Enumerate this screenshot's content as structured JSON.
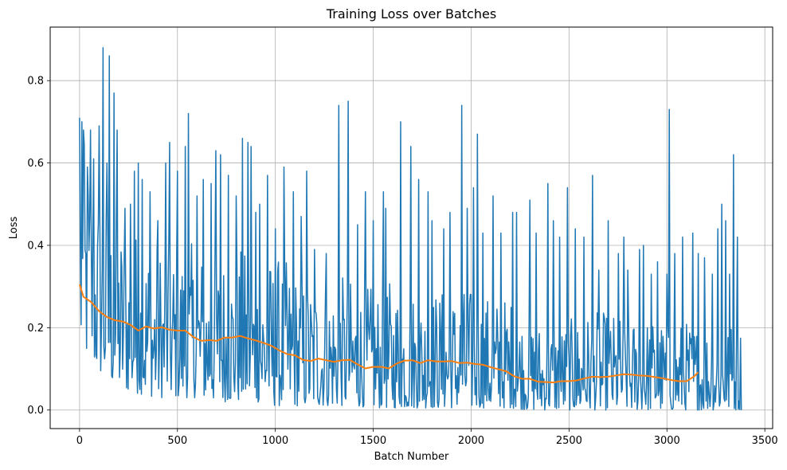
{
  "chart_data": {
    "type": "line",
    "title": "Training Loss over Batches",
    "xlabel": "Batch Number",
    "ylabel": "Loss",
    "xlim": [
      -150,
      3540
    ],
    "ylim": [
      -0.045,
      0.93
    ],
    "grid": true,
    "x_ticks": [
      0,
      500,
      1000,
      1500,
      2000,
      2500,
      3000,
      3500
    ],
    "x_tick_labels": [
      "0",
      "500",
      "1000",
      "1500",
      "2000",
      "2500",
      "3000",
      "3500"
    ],
    "y_ticks": [
      0.0,
      0.2,
      0.4,
      0.6,
      0.8
    ],
    "y_tick_labels": [
      "0.0",
      "0.2",
      "0.4",
      "0.6",
      "0.8"
    ],
    "series": [
      {
        "color": "#1f77b4",
        "x_range": [
          0,
          3380
        ],
        "envelope": {
          "x": [
            0,
            100,
            200,
            300,
            400,
            500,
            600,
            700,
            800,
            900,
            1000,
            1100,
            1200,
            1300,
            1400,
            1500,
            1600,
            1700,
            1800,
            1900,
            2000,
            2100,
            2200,
            2300,
            2400,
            2500,
            2600,
            2700,
            2800,
            2900,
            3000,
            3100,
            3200,
            3300,
            3380
          ],
          "low": [
            0.15,
            0.09,
            0.05,
            0.04,
            0.03,
            0.03,
            0.03,
            0.02,
            0.02,
            0.02,
            0.01,
            0.01,
            0.01,
            0.01,
            0.01,
            0.005,
            0.005,
            0.005,
            0.005,
            0.005,
            0.005,
            0.005,
            0.005,
            0.0,
            0.0,
            0.0,
            0.0,
            0.0,
            0.0,
            0.0,
            0.0,
            0.0,
            0.0,
            0.0,
            0.0
          ],
          "high": [
            0.68,
            0.55,
            0.48,
            0.45,
            0.42,
            0.42,
            0.4,
            0.4,
            0.4,
            0.38,
            0.38,
            0.35,
            0.33,
            0.33,
            0.32,
            0.3,
            0.32,
            0.3,
            0.3,
            0.3,
            0.3,
            0.28,
            0.28,
            0.22,
            0.22,
            0.22,
            0.24,
            0.24,
            0.23,
            0.23,
            0.22,
            0.22,
            0.22,
            0.22,
            0.22
          ]
        },
        "spikes": [
          [
            0,
            0.71
          ],
          [
            10,
            0.7
          ],
          [
            20,
            0.68
          ],
          [
            40,
            0.59
          ],
          [
            55,
            0.68
          ],
          [
            70,
            0.61
          ],
          [
            100,
            0.69
          ],
          [
            120,
            0.88
          ],
          [
            140,
            0.6
          ],
          [
            150,
            0.86
          ],
          [
            175,
            0.77
          ],
          [
            190,
            0.68
          ],
          [
            230,
            0.49
          ],
          [
            260,
            0.5
          ],
          [
            280,
            0.58
          ],
          [
            300,
            0.6
          ],
          [
            320,
            0.56
          ],
          [
            360,
            0.53
          ],
          [
            400,
            0.46
          ],
          [
            440,
            0.6
          ],
          [
            460,
            0.65
          ],
          [
            500,
            0.58
          ],
          [
            540,
            0.64
          ],
          [
            555,
            0.72
          ],
          [
            600,
            0.52
          ],
          [
            630,
            0.56
          ],
          [
            670,
            0.55
          ],
          [
            695,
            0.63
          ],
          [
            720,
            0.62
          ],
          [
            760,
            0.57
          ],
          [
            800,
            0.52
          ],
          [
            830,
            0.66
          ],
          [
            860,
            0.65
          ],
          [
            875,
            0.64
          ],
          [
            900,
            0.48
          ],
          [
            920,
            0.5
          ],
          [
            960,
            0.57
          ],
          [
            1000,
            0.44
          ],
          [
            1045,
            0.59
          ],
          [
            1090,
            0.53
          ],
          [
            1130,
            0.47
          ],
          [
            1160,
            0.58
          ],
          [
            1200,
            0.39
          ],
          [
            1260,
            0.38
          ],
          [
            1325,
            0.74
          ],
          [
            1370,
            0.75
          ],
          [
            1420,
            0.45
          ],
          [
            1460,
            0.53
          ],
          [
            1500,
            0.46
          ],
          [
            1550,
            0.53
          ],
          [
            1565,
            0.49
          ],
          [
            1640,
            0.7
          ],
          [
            1690,
            0.64
          ],
          [
            1730,
            0.56
          ],
          [
            1780,
            0.53
          ],
          [
            1800,
            0.46
          ],
          [
            1860,
            0.44
          ],
          [
            1890,
            0.48
          ],
          [
            1950,
            0.74
          ],
          [
            1980,
            0.49
          ],
          [
            2010,
            0.54
          ],
          [
            2030,
            0.67
          ],
          [
            2060,
            0.43
          ],
          [
            2110,
            0.52
          ],
          [
            2150,
            0.43
          ],
          [
            2210,
            0.48
          ],
          [
            2230,
            0.48
          ],
          [
            2300,
            0.51
          ],
          [
            2330,
            0.43
          ],
          [
            2390,
            0.55
          ],
          [
            2420,
            0.46
          ],
          [
            2450,
            0.42
          ],
          [
            2490,
            0.54
          ],
          [
            2530,
            0.44
          ],
          [
            2575,
            0.42
          ],
          [
            2620,
            0.57
          ],
          [
            2650,
            0.34
          ],
          [
            2700,
            0.46
          ],
          [
            2750,
            0.38
          ],
          [
            2780,
            0.42
          ],
          [
            2800,
            0.34
          ],
          [
            2860,
            0.39
          ],
          [
            2880,
            0.4
          ],
          [
            2920,
            0.33
          ],
          [
            2950,
            0.36
          ],
          [
            3000,
            0.33
          ],
          [
            3010,
            0.73
          ],
          [
            3040,
            0.38
          ],
          [
            3080,
            0.42
          ],
          [
            3130,
            0.43
          ],
          [
            3160,
            0.38
          ],
          [
            3190,
            0.37
          ],
          [
            3230,
            0.33
          ],
          [
            3260,
            0.44
          ],
          [
            3280,
            0.5
          ],
          [
            3300,
            0.46
          ],
          [
            3320,
            0.33
          ],
          [
            3340,
            0.62
          ],
          [
            3360,
            0.42
          ]
        ]
      },
      {
        "color": "#ff7f0e",
        "x": [
          0,
          20,
          60,
          100,
          140,
          180,
          220,
          260,
          300,
          340,
          380,
          420,
          460,
          500,
          540,
          580,
          620,
          660,
          700,
          740,
          780,
          820,
          860,
          900,
          940,
          980,
          1020,
          1060,
          1100,
          1140,
          1180,
          1220,
          1260,
          1300,
          1340,
          1380,
          1420,
          1460,
          1500,
          1540,
          1580,
          1620,
          1660,
          1700,
          1740,
          1780,
          1820,
          1860,
          1900,
          1940,
          1980,
          2020,
          2060,
          2100,
          2140,
          2180,
          2220,
          2260,
          2300,
          2340,
          2380,
          2420,
          2460,
          2500,
          2540,
          2580,
          2620,
          2660,
          2700,
          2740,
          2780,
          2820,
          2860,
          2900,
          2940,
          2980,
          3020,
          3060,
          3100,
          3140,
          3160
        ],
        "y": [
          0.305,
          0.275,
          0.262,
          0.24,
          0.226,
          0.218,
          0.215,
          0.207,
          0.193,
          0.203,
          0.198,
          0.201,
          0.195,
          0.193,
          0.193,
          0.178,
          0.168,
          0.17,
          0.168,
          0.176,
          0.176,
          0.18,
          0.174,
          0.169,
          0.163,
          0.156,
          0.145,
          0.136,
          0.133,
          0.122,
          0.119,
          0.125,
          0.121,
          0.117,
          0.121,
          0.122,
          0.111,
          0.101,
          0.105,
          0.105,
          0.101,
          0.113,
          0.12,
          0.121,
          0.114,
          0.121,
          0.118,
          0.118,
          0.119,
          0.114,
          0.115,
          0.112,
          0.11,
          0.104,
          0.099,
          0.094,
          0.082,
          0.076,
          0.076,
          0.069,
          0.068,
          0.067,
          0.07,
          0.07,
          0.072,
          0.077,
          0.081,
          0.08,
          0.081,
          0.084,
          0.087,
          0.086,
          0.084,
          0.083,
          0.08,
          0.077,
          0.073,
          0.07,
          0.07,
          0.082,
          0.092
        ]
      }
    ]
  }
}
